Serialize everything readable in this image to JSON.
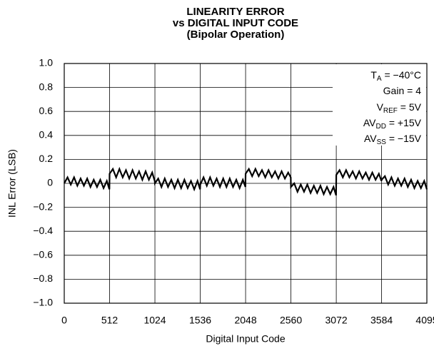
{
  "chart_data": {
    "type": "line",
    "title": [
      "LINEARITY ERROR",
      "vs DIGITAL INPUT CODE",
      "(Bipolar Operation)"
    ],
    "x_label": "Digital Input Code",
    "y_label": "INL Error (LSB)",
    "xlim": [
      0,
      4095
    ],
    "xticks": [
      0,
      512,
      1024,
      1536,
      2048,
      2560,
      3072,
      3584,
      4095
    ],
    "ylim": [
      -1,
      1
    ],
    "yticks": [
      {
        "value": 1,
        "label": "1.0"
      },
      0.8,
      0.6,
      0.4,
      0.2,
      0,
      {
        "value": -0.2,
        "label": "−0.2"
      },
      {
        "value": -0.4,
        "label": "−0.4"
      },
      {
        "value": -0.6,
        "label": "−0.6"
      },
      {
        "value": -0.8,
        "label": "−0.8"
      },
      {
        "value": -1,
        "label": "−1.0"
      }
    ],
    "grid": true,
    "color": "#000000",
    "annotation": [
      {
        "main": "T",
        "sub": "A",
        "rest": " = −40°C"
      },
      {
        "main": "Gain = 4"
      },
      {
        "main": "V",
        "sub": "REF",
        "rest": " = 5V"
      },
      {
        "main": "AV",
        "sub": "DD",
        "rest": " = +15V"
      },
      {
        "main": "AV",
        "sub": "SS",
        "rest": " = −15V"
      }
    ],
    "x": [
      0,
      37,
      74,
      111,
      148,
      185,
      222,
      259,
      296,
      333,
      370,
      407,
      444,
      481,
      510,
      512,
      549,
      586,
      623,
      660,
      697,
      734,
      771,
      808,
      845,
      882,
      919,
      956,
      993,
      1022,
      1024,
      1061,
      1098,
      1135,
      1172,
      1209,
      1246,
      1283,
      1320,
      1357,
      1394,
      1431,
      1468,
      1505,
      1534,
      1536,
      1573,
      1610,
      1647,
      1684,
      1721,
      1758,
      1795,
      1832,
      1869,
      1906,
      1943,
      1980,
      2017,
      2046,
      2048,
      2085,
      2122,
      2159,
      2196,
      2233,
      2270,
      2307,
      2344,
      2381,
      2418,
      2455,
      2492,
      2529,
      2558,
      2560,
      2597,
      2634,
      2671,
      2708,
      2745,
      2782,
      2819,
      2856,
      2893,
      2930,
      2967,
      3004,
      3041,
      3070,
      3072,
      3109,
      3146,
      3183,
      3220,
      3257,
      3294,
      3331,
      3368,
      3405,
      3442,
      3479,
      3516,
      3553,
      3582,
      3584,
      3621,
      3658,
      3695,
      3732,
      3769,
      3806,
      3843,
      3880,
      3917,
      3954,
      3991,
      4028,
      4065,
      4095
    ],
    "values": [
      0,
      0.05,
      -0.01,
      0.05,
      -0.02,
      0.04,
      -0.02,
      0.04,
      -0.03,
      0.03,
      -0.03,
      0.03,
      -0.04,
      0.02,
      -0.05,
      0.08,
      0.12,
      0.05,
      0.12,
      0.05,
      0.11,
      0.04,
      0.11,
      0.04,
      0.1,
      0.03,
      0.1,
      0.03,
      0.09,
      0.02,
      0,
      0.04,
      -0.03,
      0.04,
      -0.03,
      0.03,
      -0.04,
      0.03,
      -0.04,
      0.03,
      -0.04,
      0.02,
      -0.05,
      0.02,
      -0.05,
      -0.01,
      0.05,
      -0.02,
      0.05,
      -0.02,
      0.04,
      -0.03,
      0.04,
      -0.03,
      0.04,
      -0.03,
      0.03,
      -0.04,
      0.03,
      -0.03,
      0.08,
      0.12,
      0.06,
      0.12,
      0.06,
      0.11,
      0.05,
      0.11,
      0.05,
      0.1,
      0.04,
      0.1,
      0.04,
      0.09,
      0.05,
      -0.03,
      0,
      -0.07,
      -0.01,
      -0.07,
      -0.01,
      -0.08,
      -0.02,
      -0.08,
      -0.02,
      -0.09,
      -0.03,
      -0.09,
      -0.03,
      -0.1,
      0.07,
      0.11,
      0.05,
      0.11,
      0.05,
      0.1,
      0.04,
      0.1,
      0.04,
      0.09,
      0.03,
      0.09,
      0.03,
      0.08,
      0.02,
      0.03,
      0.06,
      -0.01,
      0.05,
      -0.02,
      0.04,
      -0.02,
      0.04,
      -0.03,
      0.03,
      -0.04,
      0.02,
      -0.04,
      0.02,
      -0.05
    ]
  }
}
